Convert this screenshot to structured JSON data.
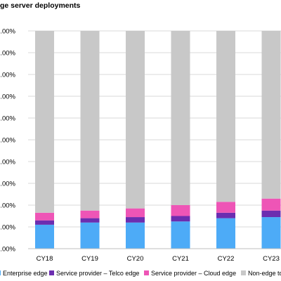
{
  "chart_data": {
    "type": "bar",
    "stacked": true,
    "title": "ge server deployments",
    "categories": [
      "CY18",
      "CY19",
      "CY20",
      "CY21",
      "CY22",
      "CY23"
    ],
    "y_tick_labels": [
      "0.00%",
      ".00%",
      ".00%",
      ".00%",
      ".00%",
      ".00%",
      ".00%",
      ".00%",
      ".00%",
      ".00%",
      ".00%"
    ],
    "ylim": [
      0,
      100
    ],
    "grid": true,
    "legend_position": "bottom",
    "series": [
      {
        "name": "Enterprise edge",
        "color": "#4DABF7",
        "values": [
          11,
          12,
          12,
          12.5,
          14,
          14.5
        ]
      },
      {
        "name": "Service provider – Telco edge",
        "color": "#6C2DB0",
        "values": [
          2,
          2,
          2.5,
          2.5,
          2.5,
          3
        ]
      },
      {
        "name": "Service provider – Cloud edge",
        "color": "#EE55B6",
        "values": [
          3.5,
          3.5,
          4,
          5,
          5,
          5.5
        ]
      },
      {
        "name": "Non-edge to",
        "color": "#C8C8C8",
        "values": [
          83.5,
          82.5,
          81.5,
          80,
          78.5,
          77
        ]
      }
    ]
  }
}
